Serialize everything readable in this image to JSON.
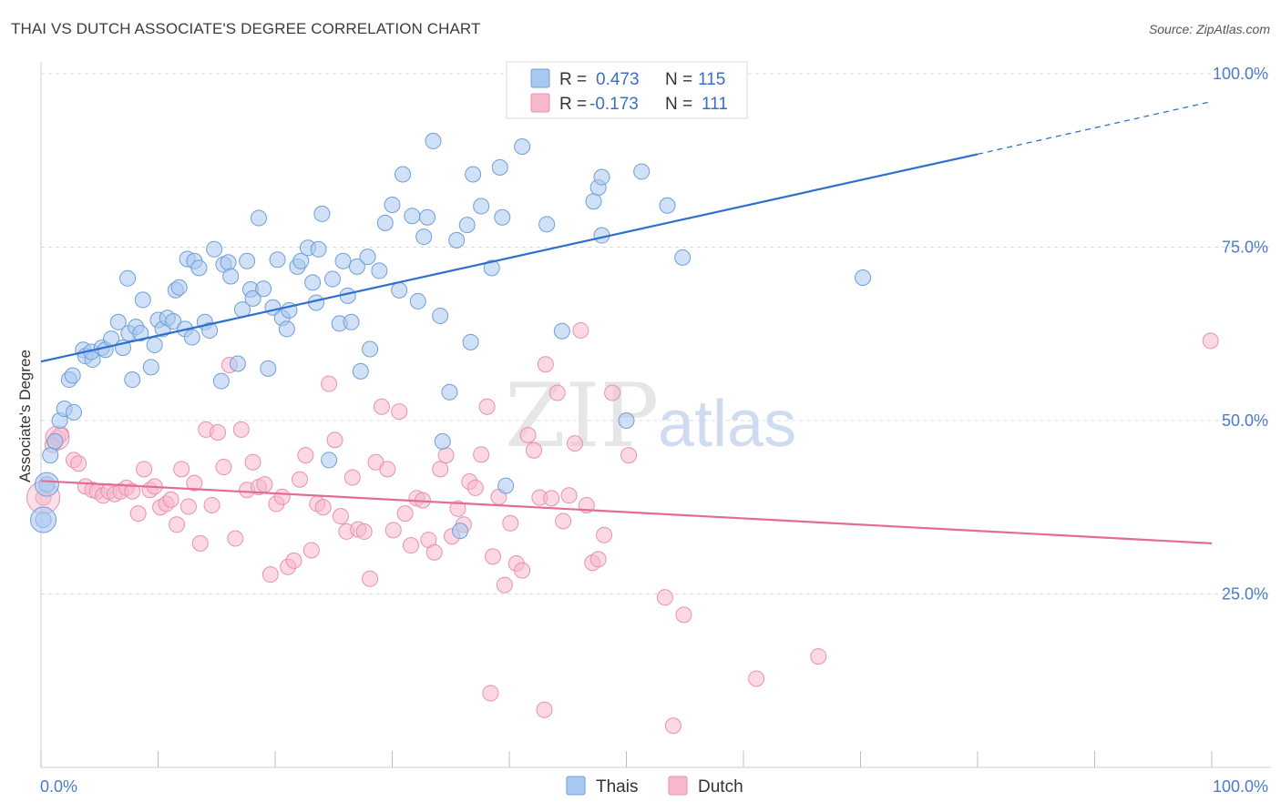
{
  "title": "THAI VS DUTCH ASSOCIATE'S DEGREE CORRELATION CHART",
  "source": "Source: ZipAtlas.com",
  "watermark": {
    "zip": "ZIP",
    "atlas": "atlas"
  },
  "legend": {
    "rows": [
      {
        "r_label": "R =",
        "r_value": "0.473",
        "n_label": "N =",
        "n_value": "115"
      },
      {
        "r_label": "R =",
        "r_value": "-0.173",
        "n_label": "N =",
        "n_value": "111"
      }
    ]
  },
  "bottom_legend": [
    "Thais",
    "Dutch"
  ],
  "colors": {
    "thai_fill": "#a9c8f0",
    "thai_stroke": "#6f9fd8",
    "thai_line": "#2f6fce",
    "dutch_fill": "#f7b8cd",
    "dutch_stroke": "#e991b0",
    "dutch_line": "#e46b94",
    "tick_text": "#4a7cc7",
    "grid": "#dcdcdc"
  },
  "chart_data": {
    "type": "scatter",
    "title": "THAI VS DUTCH ASSOCIATE'S DEGREE CORRELATION CHART",
    "xlabel": "",
    "ylabel": "Associate's Degree",
    "xlim": [
      0,
      100
    ],
    "ylim": [
      0,
      105
    ],
    "x_tick_labels": [
      "0.0%",
      "100.0%"
    ],
    "y_ticks": [
      25,
      50,
      75,
      100
    ],
    "y_tick_labels": [
      "25.0%",
      "50.0%",
      "75.0%",
      "100.0%"
    ],
    "grid": true,
    "legend_position": "top-center",
    "series": [
      {
        "name": "Thais",
        "r": 0.473,
        "n": 115,
        "trend": {
          "x0": 0,
          "y0": 58.5,
          "x1": 80,
          "y1": 88.4,
          "dashed_to": {
            "x": 100,
            "y": 96.0
          }
        },
        "points": [
          [
            0.2,
            35.7
          ],
          [
            0.5,
            40.8
          ],
          [
            0.8,
            45.0
          ],
          [
            1.2,
            47.0
          ],
          [
            1.6,
            50.0
          ],
          [
            2.0,
            51.7
          ],
          [
            2.8,
            51.2
          ],
          [
            2.4,
            55.9
          ],
          [
            2.7,
            56.5
          ],
          [
            3.6,
            60.2
          ],
          [
            3.8,
            59.3
          ],
          [
            4.4,
            58.8
          ],
          [
            4.3,
            59.9
          ],
          [
            5.2,
            60.5
          ],
          [
            5.5,
            60.2
          ],
          [
            6.0,
            61.8
          ],
          [
            6.6,
            64.2
          ],
          [
            7.0,
            60.5
          ],
          [
            7.5,
            62.6
          ],
          [
            7.4,
            70.5
          ],
          [
            7.8,
            55.9
          ],
          [
            8.1,
            63.5
          ],
          [
            8.5,
            62.6
          ],
          [
            8.7,
            67.4
          ],
          [
            9.4,
            57.7
          ],
          [
            9.7,
            60.9
          ],
          [
            10.0,
            64.5
          ],
          [
            10.4,
            63.2
          ],
          [
            10.8,
            64.8
          ],
          [
            11.3,
            64.3
          ],
          [
            11.5,
            68.8
          ],
          [
            11.8,
            69.2
          ],
          [
            12.3,
            63.2
          ],
          [
            12.5,
            73.3
          ],
          [
            12.9,
            62.0
          ],
          [
            13.1,
            73.0
          ],
          [
            13.5,
            72.0
          ],
          [
            14.0,
            64.2
          ],
          [
            14.4,
            63.0
          ],
          [
            14.8,
            74.7
          ],
          [
            15.4,
            55.7
          ],
          [
            15.6,
            72.5
          ],
          [
            16.0,
            72.8
          ],
          [
            16.2,
            70.8
          ],
          [
            16.8,
            58.2
          ],
          [
            17.2,
            66.0
          ],
          [
            17.6,
            73.0
          ],
          [
            17.9,
            68.9
          ],
          [
            18.1,
            67.6
          ],
          [
            18.6,
            79.2
          ],
          [
            19.0,
            69.0
          ],
          [
            19.4,
            57.5
          ],
          [
            19.8,
            66.3
          ],
          [
            20.2,
            73.2
          ],
          [
            20.6,
            64.8
          ],
          [
            21.0,
            63.2
          ],
          [
            21.2,
            65.9
          ],
          [
            21.9,
            72.2
          ],
          [
            22.2,
            73.0
          ],
          [
            22.8,
            74.9
          ],
          [
            23.2,
            69.9
          ],
          [
            23.5,
            67.0
          ],
          [
            23.7,
            74.7
          ],
          [
            24.0,
            79.8
          ],
          [
            24.6,
            44.3
          ],
          [
            24.9,
            70.4
          ],
          [
            25.5,
            64.0
          ],
          [
            25.8,
            73.0
          ],
          [
            26.2,
            68.0
          ],
          [
            26.5,
            64.2
          ],
          [
            27.0,
            72.2
          ],
          [
            27.3,
            57.1
          ],
          [
            27.9,
            73.6
          ],
          [
            28.1,
            60.3
          ],
          [
            28.9,
            71.6
          ],
          [
            29.4,
            78.5
          ],
          [
            30.0,
            81.1
          ],
          [
            30.6,
            68.8
          ],
          [
            30.9,
            85.5
          ],
          [
            31.7,
            79.5
          ],
          [
            32.2,
            67.2
          ],
          [
            32.7,
            76.5
          ],
          [
            33.0,
            79.3
          ],
          [
            33.5,
            90.3
          ],
          [
            34.1,
            65.1
          ],
          [
            34.3,
            47.0
          ],
          [
            34.9,
            54.1
          ],
          [
            35.5,
            76.0
          ],
          [
            36.4,
            78.2
          ],
          [
            36.7,
            61.3
          ],
          [
            36.9,
            85.5
          ],
          [
            37.6,
            80.9
          ],
          [
            38.5,
            72.0
          ],
          [
            39.2,
            86.5
          ],
          [
            39.4,
            79.3
          ],
          [
            39.7,
            40.6
          ],
          [
            41.1,
            89.5
          ],
          [
            43.2,
            78.3
          ],
          [
            44.5,
            62.9
          ],
          [
            35.8,
            34.1
          ],
          [
            47.2,
            81.6
          ],
          [
            47.6,
            83.6
          ],
          [
            47.9,
            85.1
          ],
          [
            47.9,
            76.7
          ],
          [
            50.0,
            50.0
          ],
          [
            51.3,
            85.9
          ],
          [
            53.5,
            81.0
          ],
          [
            54.8,
            73.5
          ],
          [
            70.2,
            70.6
          ]
        ]
      },
      {
        "name": "Dutch",
        "r": -0.173,
        "n": 111,
        "trend": {
          "x0": 0,
          "y0": 41.3,
          "x1": 100,
          "y1": 32.3
        },
        "points": [
          [
            0.2,
            38.9
          ],
          [
            1.0,
            46.5
          ],
          [
            1.4,
            47.5
          ],
          [
            1.7,
            48.0
          ],
          [
            2.8,
            44.3
          ],
          [
            3.2,
            43.8
          ],
          [
            3.8,
            40.5
          ],
          [
            4.4,
            40.0
          ],
          [
            4.8,
            39.8
          ],
          [
            5.3,
            39.2
          ],
          [
            5.8,
            39.8
          ],
          [
            6.3,
            39.4
          ],
          [
            6.8,
            39.8
          ],
          [
            7.3,
            40.3
          ],
          [
            7.8,
            39.8
          ],
          [
            8.3,
            36.6
          ],
          [
            8.8,
            43.0
          ],
          [
            9.3,
            40.0
          ],
          [
            9.7,
            40.5
          ],
          [
            10.2,
            37.5
          ],
          [
            10.7,
            38.0
          ],
          [
            11.1,
            38.6
          ],
          [
            11.6,
            35.0
          ],
          [
            12.0,
            43.0
          ],
          [
            12.6,
            37.6
          ],
          [
            13.1,
            41.0
          ],
          [
            13.6,
            32.3
          ],
          [
            14.1,
            48.7
          ],
          [
            14.6,
            37.8
          ],
          [
            15.1,
            48.3
          ],
          [
            15.6,
            43.3
          ],
          [
            16.1,
            58.0
          ],
          [
            16.6,
            33.0
          ],
          [
            17.1,
            48.7
          ],
          [
            17.6,
            40.0
          ],
          [
            18.1,
            44.0
          ],
          [
            18.6,
            40.4
          ],
          [
            19.1,
            40.8
          ],
          [
            19.6,
            27.8
          ],
          [
            20.1,
            38.0
          ],
          [
            20.6,
            39.0
          ],
          [
            21.1,
            28.9
          ],
          [
            21.6,
            29.8
          ],
          [
            22.1,
            41.5
          ],
          [
            22.6,
            45.0
          ],
          [
            23.1,
            31.3
          ],
          [
            23.6,
            38.0
          ],
          [
            24.1,
            37.5
          ],
          [
            24.6,
            55.3
          ],
          [
            25.1,
            47.2
          ],
          [
            25.6,
            36.2
          ],
          [
            26.1,
            34.0
          ],
          [
            26.6,
            41.8
          ],
          [
            27.1,
            34.3
          ],
          [
            27.6,
            34.0
          ],
          [
            28.1,
            27.2
          ],
          [
            28.6,
            44.0
          ],
          [
            29.1,
            52.0
          ],
          [
            29.6,
            43.0
          ],
          [
            30.1,
            34.2
          ],
          [
            30.6,
            51.3
          ],
          [
            31.1,
            36.6
          ],
          [
            31.6,
            32.0
          ],
          [
            32.1,
            38.8
          ],
          [
            32.6,
            38.5
          ],
          [
            33.1,
            32.8
          ],
          [
            33.6,
            31.0
          ],
          [
            34.1,
            43.0
          ],
          [
            34.6,
            45.0
          ],
          [
            35.1,
            33.3
          ],
          [
            35.6,
            37.3
          ],
          [
            36.1,
            35.0
          ],
          [
            36.6,
            41.2
          ],
          [
            37.1,
            40.3
          ],
          [
            37.6,
            45.1
          ],
          [
            38.1,
            52.0
          ],
          [
            38.6,
            30.4
          ],
          [
            39.1,
            39.0
          ],
          [
            39.6,
            26.3
          ],
          [
            40.1,
            35.2
          ],
          [
            40.6,
            29.4
          ],
          [
            41.1,
            28.4
          ],
          [
            41.6,
            47.9
          ],
          [
            42.1,
            45.7
          ],
          [
            42.6,
            38.9
          ],
          [
            43.1,
            58.1
          ],
          [
            43.6,
            38.8
          ],
          [
            44.1,
            54.0
          ],
          [
            44.6,
            35.5
          ],
          [
            45.1,
            39.2
          ],
          [
            45.6,
            46.7
          ],
          [
            46.1,
            63.0
          ],
          [
            46.6,
            37.8
          ],
          [
            47.1,
            29.5
          ],
          [
            47.6,
            30.0
          ],
          [
            48.1,
            33.5
          ],
          [
            48.8,
            54.0
          ],
          [
            50.2,
            45.0
          ],
          [
            53.3,
            24.5
          ],
          [
            54.9,
            22.0
          ],
          [
            61.1,
            12.8
          ],
          [
            66.4,
            16.0
          ],
          [
            38.4,
            10.7
          ],
          [
            43.0,
            8.3
          ],
          [
            54.0,
            6.0
          ],
          [
            99.9,
            61.5
          ]
        ]
      }
    ]
  }
}
